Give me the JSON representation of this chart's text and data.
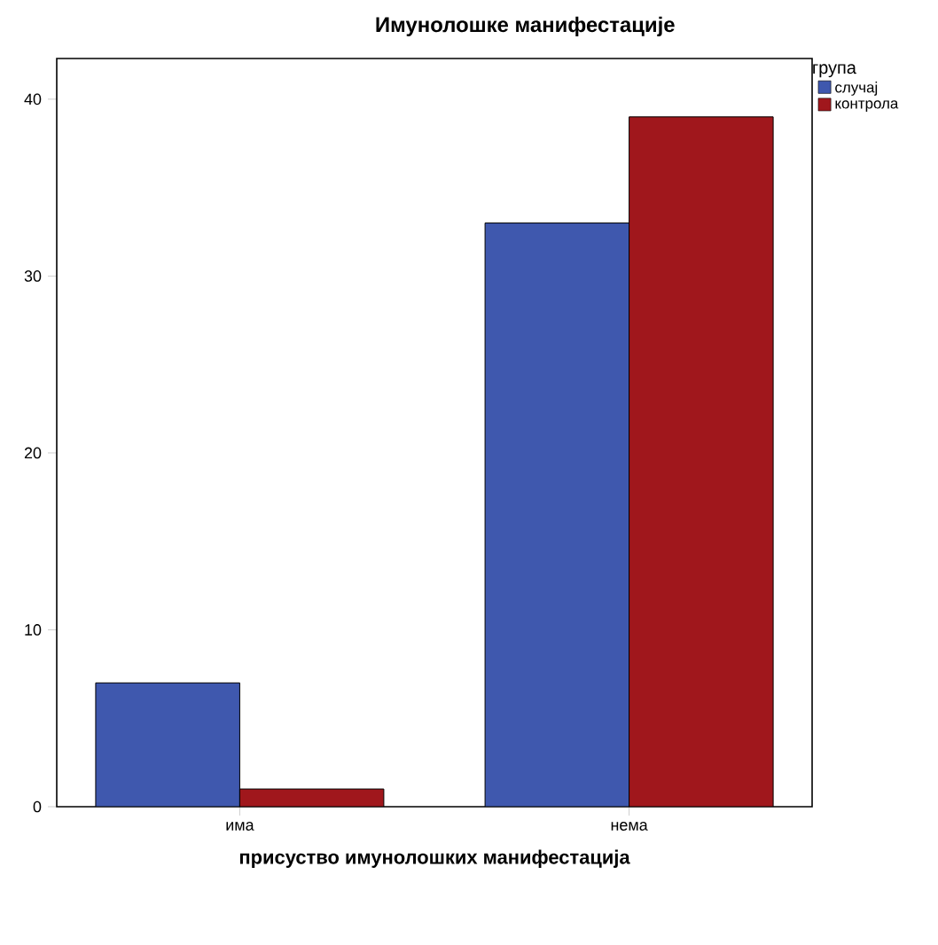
{
  "chart_data": {
    "type": "bar",
    "title": "Имунолошке манифестације",
    "xlabel": "присуство имунолошких манифестација",
    "legend_title": "група",
    "categories": [
      "има",
      "нема"
    ],
    "series": [
      {
        "name": "случај",
        "color": "#3f58ae",
        "values": [
          7,
          33
        ]
      },
      {
        "name": "контрола",
        "color": "#a0171c",
        "values": [
          1,
          39
        ]
      }
    ],
    "ylim": [
      0,
      42.3
    ],
    "yticks": [
      0,
      10,
      20,
      30,
      40
    ],
    "grid": false,
    "legend": "top right"
  }
}
